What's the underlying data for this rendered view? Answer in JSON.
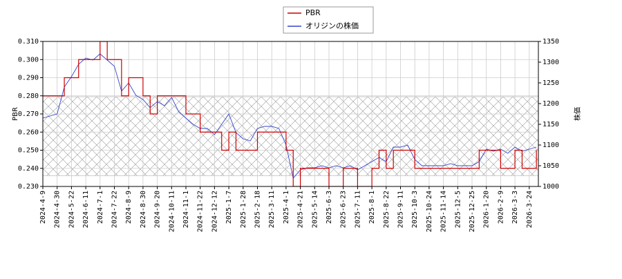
{
  "chart_data": {
    "type": "line",
    "ylabel": "PBR",
    "y2label": "株価",
    "x": [
      "2024-4-9",
      null,
      "2024-4-30",
      null,
      "2024-5-22",
      null,
      "2024-6-11",
      null,
      "2024-7-1",
      null,
      "2024-7-22",
      null,
      "2024-8-9",
      null,
      "2024-8-30",
      null,
      "2024-9-20",
      null,
      "2024-10-11",
      null,
      "2024-11-1",
      null,
      "2024-11-22",
      null,
      "2024-12-12",
      null,
      "2025-1-7",
      null,
      "2025-1-28",
      null,
      "2025-2-18",
      null,
      "2025-3-11",
      null,
      "2025-4-1",
      null,
      "2025-4-21",
      null,
      "2025-5-14",
      null,
      "2025-6-3",
      null,
      "2025-6-23",
      null,
      "2025-7-11",
      null,
      "2025-8-1",
      null,
      "2025-8-22",
      null,
      "2025-9-11",
      null,
      "2025-10-3",
      null,
      "2025-10-24",
      null,
      "2025-11-14",
      null,
      "2025-12-5",
      null,
      "2025-12-25",
      null,
      "2026-1-20",
      null,
      "2026-2-9",
      null,
      "2026-3-3",
      null,
      "2026-3-24",
      null
    ],
    "series": [
      {
        "name": "PBR",
        "color": "#cc0000",
        "step": true,
        "values": [
          0.28,
          0.28,
          0.28,
          0.29,
          0.29,
          0.3,
          0.3,
          0.3,
          0.31,
          0.3,
          0.3,
          0.28,
          0.29,
          0.29,
          0.28,
          0.27,
          0.28,
          0.28,
          0.28,
          0.28,
          0.27,
          0.27,
          0.26,
          0.26,
          0.26,
          0.25,
          0.26,
          0.25,
          0.25,
          0.25,
          0.26,
          0.26,
          0.26,
          0.26,
          0.25,
          0.23,
          0.24,
          0.24,
          0.24,
          0.24,
          0.23,
          0.23,
          0.24,
          0.24,
          0.23,
          0.23,
          0.24,
          0.25,
          0.24,
          0.25,
          0.25,
          0.25,
          0.24,
          0.24,
          0.24,
          0.24,
          0.24,
          0.24,
          0.24,
          0.24,
          0.24,
          0.25,
          0.25,
          0.25,
          0.24,
          0.24,
          0.25,
          0.24,
          0.24,
          0.25
        ]
      },
      {
        "name": "オリジンの株価",
        "color": "#3344cc",
        "axis": "y2",
        "values": [
          1165,
          1170,
          1175,
          1240,
          1265,
          1295,
          1310,
          1305,
          1320,
          1305,
          1290,
          1230,
          1250,
          1220,
          1210,
          1190,
          1205,
          1195,
          1215,
          1180,
          1165,
          1150,
          1140,
          1140,
          1125,
          1150,
          1175,
          1130,
          1115,
          1110,
          1140,
          1145,
          1145,
          1140,
          1100,
          1020,
          1040,
          1045,
          1045,
          1050,
          1045,
          1050,
          1045,
          1050,
          1040,
          1050,
          1060,
          1070,
          1060,
          1095,
          1095,
          1100,
          1065,
          1050,
          1050,
          1050,
          1050,
          1055,
          1050,
          1050,
          1050,
          1060,
          1090,
          1085,
          1090,
          1080,
          1095,
          1085,
          1090,
          1095
        ]
      }
    ],
    "ylim": [
      0.23,
      0.31
    ],
    "yticks": [
      {
        "value": 0.23,
        "label": "0.230"
      },
      {
        "value": 0.24,
        "label": "0.240"
      },
      {
        "value": 0.25,
        "label": "0.250"
      },
      {
        "value": 0.26,
        "label": "0.260"
      },
      {
        "value": 0.27,
        "label": "0.270"
      },
      {
        "value": 0.28,
        "label": "0.280"
      },
      {
        "value": 0.29,
        "label": "0.290"
      },
      {
        "value": 0.3,
        "label": "0.300"
      },
      {
        "value": 0.31,
        "label": "0.310"
      }
    ],
    "y2lim": [
      1000,
      1350
    ],
    "y2ticks": [
      1000,
      1050,
      1100,
      1150,
      1200,
      1250,
      1300,
      1350
    ],
    "shaded_range": [
      0.236,
      0.2795
    ],
    "grid": true,
    "legend": "top"
  }
}
